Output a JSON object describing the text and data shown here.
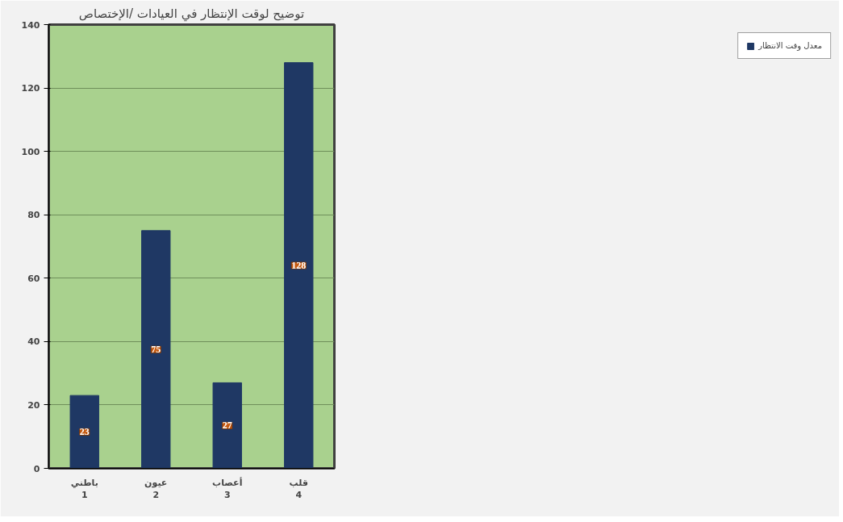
{
  "chart_data": {
    "type": "bar",
    "title": "توضيح لوقت الإنتظار في العيادات /الإختصاص",
    "categories": [
      "باطني\n1",
      "عيون\n2",
      "أعصاب\n3",
      "قلب\n4"
    ],
    "series": [
      {
        "name": "معدل وقت الانتظار",
        "color": "#1f3864",
        "values": [
          23,
          75,
          27,
          128
        ]
      }
    ],
    "ylim": [
      0,
      140
    ],
    "yticks": [
      0,
      20,
      40,
      60,
      80,
      100,
      120,
      140
    ],
    "grid": "y",
    "legend": "right",
    "data_labels": true
  }
}
